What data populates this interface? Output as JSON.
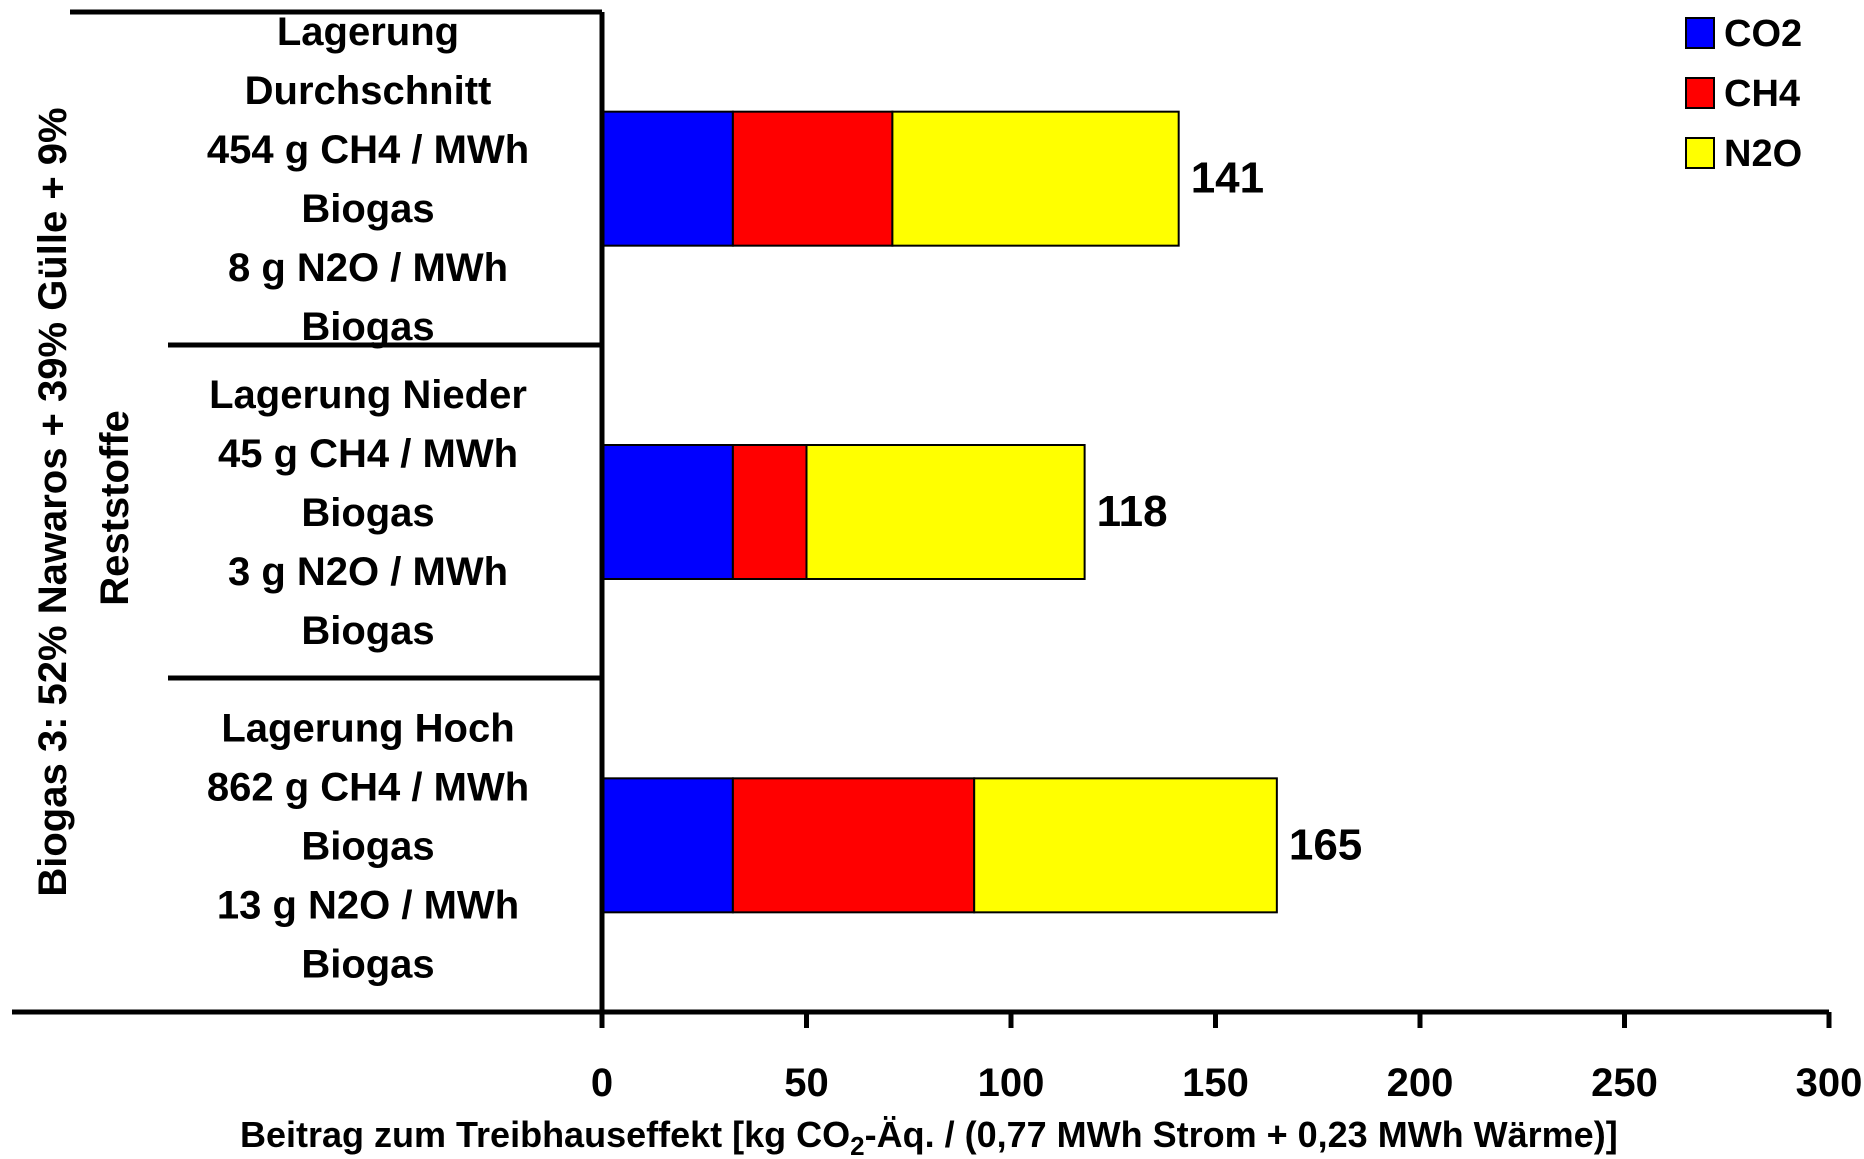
{
  "chart_data": {
    "type": "bar",
    "orientation": "horizontal",
    "stacked": true,
    "group_label": [
      "Biogas 3: 52% Nawaros + 39% Gülle + 9%",
      "Reststoffe"
    ],
    "categories": [
      [
        "Lagerung",
        "Durchschnitt",
        "454 g CH4 / MWh",
        "Biogas",
        "8 g N2O / MWh",
        "Biogas"
      ],
      [
        "Lagerung Nieder",
        "45 g CH4 / MWh",
        "Biogas",
        "3 g N2O / MWh",
        "Biogas"
      ],
      [
        "Lagerung Hoch",
        "862 g CH4 / MWh",
        "Biogas",
        "13 g N2O / MWh",
        "Biogas"
      ]
    ],
    "series": [
      {
        "name": "CO2",
        "color": "#0000ff",
        "values": [
          32,
          32,
          32
        ]
      },
      {
        "name": "CH4",
        "color": "#ff0000",
        "values": [
          39,
          18,
          59
        ]
      },
      {
        "name": "N2O",
        "color": "#ffff00",
        "values": [
          70,
          68,
          74
        ]
      }
    ],
    "totals": [
      "141",
      "118",
      "165"
    ],
    "xlim": [
      0,
      300
    ],
    "xticks": [
      "0",
      "50",
      "100",
      "150",
      "200",
      "250",
      "300"
    ],
    "xlabel": {
      "pre": "Beitrag zum Treibhauseffekt [kg CO",
      "sub": "2",
      "post": "-Äq. / (0,77 MWh Strom + 0,23 MWh Wärme)]"
    },
    "legend_position": "top-right",
    "grid": false
  }
}
